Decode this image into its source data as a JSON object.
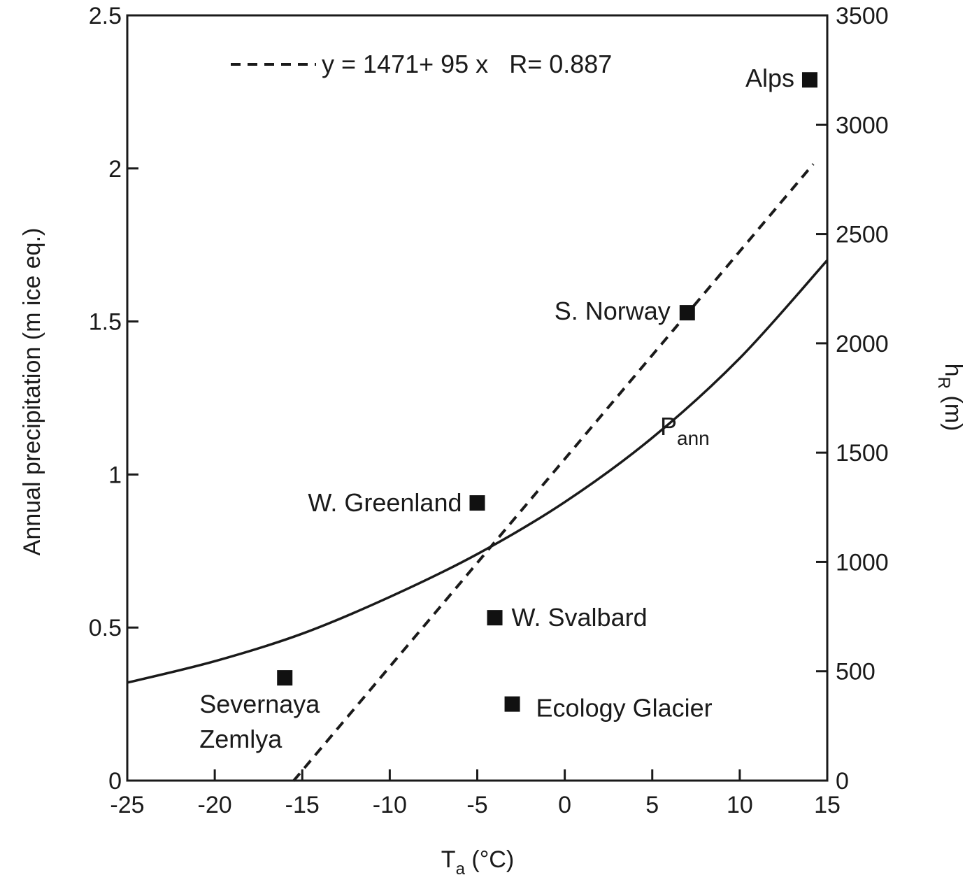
{
  "chart_data": {
    "type": "scatter",
    "title": "",
    "xlabel": {
      "main": "T",
      "sub": "a",
      "unit": " (°C)"
    },
    "ylabel_left": "Annual precipitation (m ice eq.)",
    "ylabel_right": {
      "main": "h",
      "sub": "R",
      "unit": " (m)"
    },
    "xlim": [
      -25,
      15
    ],
    "ylim_left": [
      0,
      2.5
    ],
    "ylim_right": [
      0,
      3500
    ],
    "x_ticks": [
      -25,
      -20,
      -15,
      -10,
      -5,
      0,
      5,
      10,
      15
    ],
    "x_tick_labels": [
      "-25",
      "-20",
      "-15",
      "-10",
      "-5",
      "0",
      "5",
      "10",
      "15"
    ],
    "y_left_ticks": [
      0,
      0.5,
      1,
      1.5,
      2,
      2.5
    ],
    "y_left_tick_labels": [
      "0",
      "0.5",
      "1",
      "1.5",
      "2",
      "2.5"
    ],
    "y_right_ticks": [
      0,
      500,
      1000,
      1500,
      2000,
      2500,
      3000,
      3500
    ],
    "y_right_tick_labels": [
      "0",
      "500",
      "1000",
      "1500",
      "2000",
      "2500",
      "3000",
      "3500"
    ],
    "grid": false,
    "points_axis": "right",
    "points": [
      {
        "name": "Alps",
        "x": 14.0,
        "y": 3205
      },
      {
        "name": "S. Norway",
        "x": 7.0,
        "y": 2140
      },
      {
        "name": "W. Greenland",
        "x": -5.0,
        "y": 1270
      },
      {
        "name": "W. Svalbard",
        "x": -4.0,
        "y": 745
      },
      {
        "name": "Severnaya Zemlya",
        "name_lines": [
          "Severnaya",
          "Zemlya"
        ],
        "x": -16.0,
        "y": 470
      },
      {
        "name": "Ecology Glacier",
        "x": -3.0,
        "y": 350
      }
    ],
    "regression": {
      "axis": "right",
      "label": "y = 1471+ 95 x   R= 0.887",
      "intercept": 1471,
      "slope": 95,
      "x_range": [
        -15.5,
        14.2
      ],
      "style": "dashed"
    },
    "curve": {
      "name": "P",
      "name_sub": "ann",
      "axis": "left",
      "style": "solid",
      "x": [
        -25,
        -20,
        -15,
        -10,
        -5,
        0,
        5,
        10,
        15
      ],
      "y": [
        0.32,
        0.39,
        0.48,
        0.6,
        0.74,
        0.91,
        1.12,
        1.38,
        1.7
      ]
    },
    "legend_position": "top-left"
  }
}
